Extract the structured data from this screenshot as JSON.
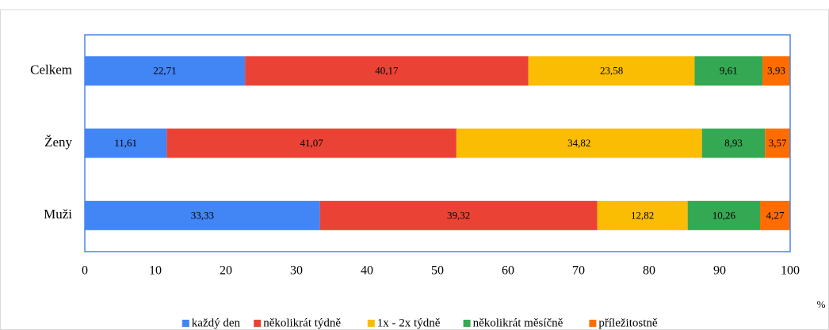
{
  "chart_data": {
    "type": "stacked_barh",
    "categories": [
      "Celkem",
      "Ženy",
      "Muži"
    ],
    "series": [
      {
        "name": "každý den",
        "color": "#4285f4",
        "values": [
          22.71,
          11.61,
          33.33
        ],
        "value_labels": [
          "22,71",
          "11,61",
          "33,33"
        ]
      },
      {
        "name": "několikrát týdně",
        "color": "#ea4335",
        "values": [
          40.17,
          41.07,
          39.32
        ],
        "value_labels": [
          "40,17",
          "41,07",
          "39,32"
        ]
      },
      {
        "name": "1x - 2x týdně",
        "color": "#fbbc04",
        "values": [
          23.58,
          34.82,
          12.82
        ],
        "value_labels": [
          "23,58",
          "34,82",
          "12,82"
        ]
      },
      {
        "name": "několikrát měsíčně",
        "color": "#34a853",
        "values": [
          9.61,
          8.93,
          10.26
        ],
        "value_labels": [
          "9,61",
          "8,93",
          "10,26"
        ]
      },
      {
        "name": "příležitostně",
        "color": "#ff6d01",
        "values": [
          3.93,
          3.57,
          4.27
        ],
        "value_labels": [
          "3,93",
          "3,57",
          "4,27"
        ]
      }
    ],
    "xlabel": "%",
    "xlim": [
      0,
      100
    ],
    "xticks": [
      0,
      10,
      20,
      30,
      40,
      50,
      60,
      70,
      80,
      90,
      100
    ],
    "grid": false,
    "legend": "bottom"
  }
}
